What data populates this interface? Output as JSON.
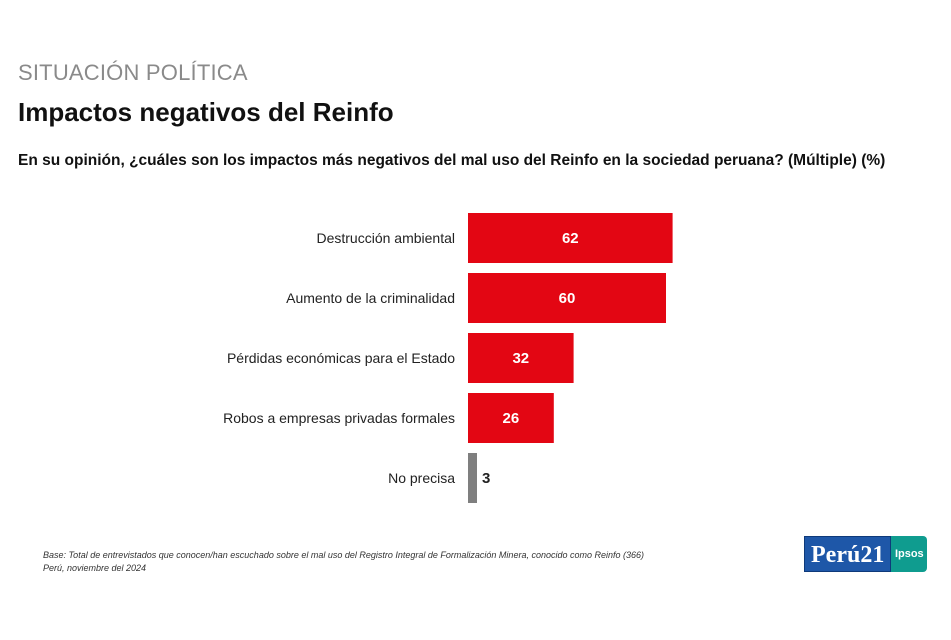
{
  "header": {
    "kicker": "SITUACIÓN POLÍTICA",
    "title": "Impactos negativos del Reinfo",
    "question": "En su opinión, ¿cuáles son los impactos más negativos del mal uso del Reinfo en la sociedad peruana? (Múltiple) (%)"
  },
  "chart_data": {
    "type": "bar",
    "orientation": "horizontal",
    "categories": [
      "Destrucción ambiental",
      "Aumento de la criminalidad",
      "Pérdidas económicas para el Estado",
      "Robos a empresas privadas formales",
      "No precisa"
    ],
    "values": [
      62,
      60,
      32,
      26,
      3
    ],
    "bar_colors": [
      "#e30613",
      "#e30613",
      "#e30613",
      "#e30613",
      "#7f7f7f"
    ],
    "title": "",
    "xlabel": "",
    "ylabel": "",
    "xlim": [
      0,
      100
    ],
    "grid": false,
    "legend": "none"
  },
  "footnote": {
    "line1": "Base:  Total de entrevistados que conocen/han escuchado sobre el mal uso del Registro Integral de Formalización Minera, conocido como Reinfo (366)",
    "line2": "Perú, noviembre del 2024"
  },
  "logos": {
    "peru21_text": "Perú",
    "peru21_number": "21",
    "ipsos_text": "Ipsos"
  },
  "colors": {
    "accent": "#e30613",
    "neutral": "#7f7f7f",
    "kicker": "#8a8a8a"
  }
}
